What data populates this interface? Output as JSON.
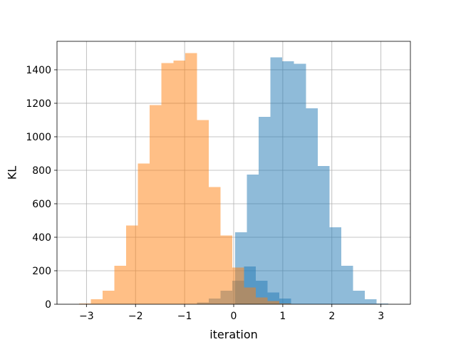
{
  "chart_data": {
    "type": "bar",
    "title": "",
    "xlabel": "iteration",
    "ylabel": "KL",
    "xlim": [
      -3.6,
      3.6
    ],
    "ylim": [
      0,
      1570
    ],
    "xticks": [
      -3,
      -2,
      -1,
      0,
      1,
      2,
      3
    ],
    "xtick_labels": [
      "−3",
      "−2",
      "−1",
      "0",
      "1",
      "2",
      "3"
    ],
    "yticks": [
      0,
      200,
      400,
      600,
      800,
      1000,
      1200,
      1400
    ],
    "ytick_labels": [
      "0",
      "200",
      "400",
      "600",
      "800",
      "1000",
      "1200",
      "1400"
    ],
    "grid": true,
    "legend": "none",
    "series": [
      {
        "color": "#1f77b4",
        "opacity": 0.5,
        "bin_edges": [
          -0.75,
          -0.51,
          -0.27,
          -0.03,
          0.21,
          0.45,
          0.69,
          0.93,
          1.17,
          1.41,
          1.65,
          1.89,
          2.13,
          2.37,
          2.61,
          2.85,
          3.09
        ],
        "values": [
          10,
          35,
          80,
          140,
          225,
          140,
          70,
          35,
          0,
          0,
          0,
          0,
          0,
          0,
          0,
          0
        ]
      },
      {
        "color": "#1f77b4",
        "opacity": 0.5,
        "bin_edges": [
          0.03,
          0.27,
          0.51,
          0.75,
          0.99,
          1.23,
          1.47,
          1.71,
          1.95,
          2.19,
          2.43,
          2.67,
          2.91,
          3.15
        ],
        "values": [
          430,
          775,
          1120,
          1475,
          1450,
          1435,
          1170,
          825,
          460,
          230,
          80,
          30,
          5
        ]
      },
      {
        "color": "#ff7f0e",
        "opacity": 0.5,
        "bin_edges": [
          -3.15,
          -2.91,
          -2.67,
          -2.43,
          -2.19,
          -1.95,
          -1.71,
          -1.47,
          -1.23,
          -0.99,
          -0.75,
          -0.51,
          -0.27,
          -0.03,
          0.21,
          0.45,
          0.69,
          0.93,
          1.17
        ],
        "values": [
          5,
          30,
          80,
          230,
          470,
          840,
          1190,
          1440,
          1455,
          1500,
          1100,
          700,
          410,
          220,
          100,
          40,
          20,
          5
        ]
      }
    ]
  }
}
